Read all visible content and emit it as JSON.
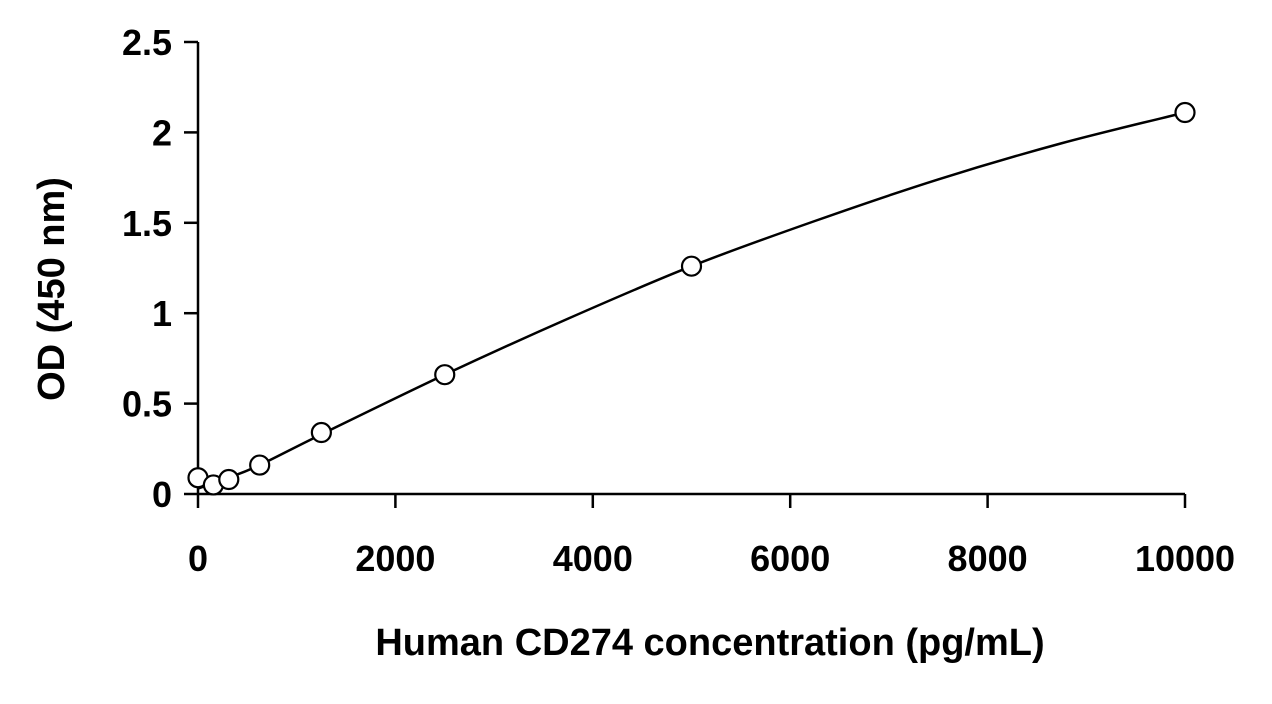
{
  "chart_data": {
    "type": "scatter",
    "xlabel": "Human CD274 concentration (pg/mL)",
    "ylabel": "OD (450 nm)",
    "xlim": [
      0,
      10000
    ],
    "ylim": [
      0,
      2.5
    ],
    "x_ticks": [
      0,
      2000,
      4000,
      6000,
      8000,
      10000
    ],
    "x_tick_labels": [
      "0",
      "2000",
      "4000",
      "6000",
      "8000",
      "10000"
    ],
    "y_ticks": [
      0,
      0.5,
      1,
      1.5,
      2,
      2.5
    ],
    "y_tick_labels": [
      "0",
      "0.5",
      "1",
      "1.5",
      "2",
      "2.5"
    ],
    "grid": false,
    "legend": "none",
    "series": [
      {
        "marker": "open-circle",
        "points": [
          {
            "x": 0,
            "y": 0.09
          },
          {
            "x": 156,
            "y": 0.05
          },
          {
            "x": 312,
            "y": 0.08
          },
          {
            "x": 625,
            "y": 0.16
          },
          {
            "x": 1250,
            "y": 0.34
          },
          {
            "x": 2500,
            "y": 0.66
          },
          {
            "x": 5000,
            "y": 1.26
          },
          {
            "x": 10000,
            "y": 2.11
          }
        ]
      }
    ],
    "fit_curve": {
      "style": "smooth-line",
      "points": [
        {
          "x": 0,
          "y": 0.03
        },
        {
          "x": 156,
          "y": 0.06
        },
        {
          "x": 312,
          "y": 0.09
        },
        {
          "x": 625,
          "y": 0.16
        },
        {
          "x": 1250,
          "y": 0.33
        },
        {
          "x": 2500,
          "y": 0.66
        },
        {
          "x": 3750,
          "y": 0.97
        },
        {
          "x": 5000,
          "y": 1.26
        },
        {
          "x": 6250,
          "y": 1.51
        },
        {
          "x": 7500,
          "y": 1.74
        },
        {
          "x": 8750,
          "y": 1.94
        },
        {
          "x": 10000,
          "y": 2.11
        }
      ]
    },
    "colors": {
      "axis": "#000000",
      "curve": "#000000",
      "marker_stroke": "#000000",
      "marker_fill": "#ffffff",
      "text": "#000000"
    }
  }
}
